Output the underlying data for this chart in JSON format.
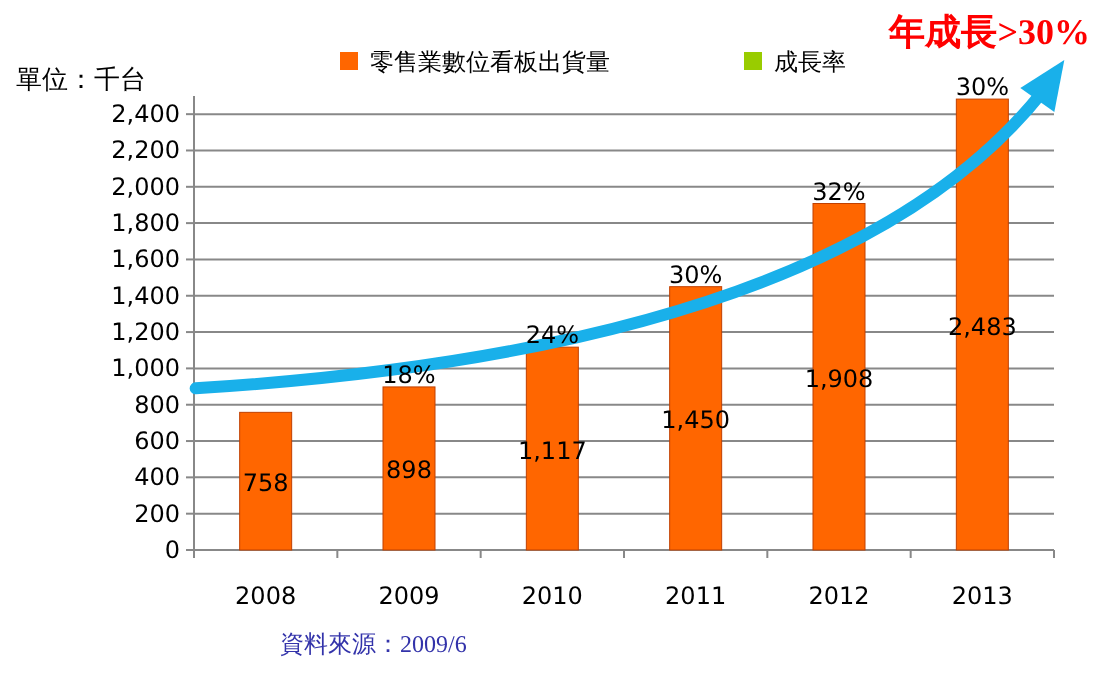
{
  "chart_data": {
    "type": "bar",
    "categories": [
      "2008",
      "2009",
      "2010",
      "2011",
      "2012",
      "2013"
    ],
    "series": [
      {
        "name": "零售業數位看板出貨量",
        "color": "#ff6600",
        "values": [
          758,
          898,
          1117,
          1450,
          1908,
          2483
        ],
        "value_labels": [
          "758",
          "898",
          "1,117",
          "1,450",
          "1,908",
          "2,483"
        ]
      },
      {
        "name": "成長率",
        "color": "#99cc00",
        "values": [
          null,
          null,
          null,
          null,
          null,
          null
        ]
      }
    ],
    "ylim": [
      0,
      2500
    ],
    "yticks": [
      0,
      200,
      400,
      600,
      800,
      {
        "value": 1000,
        "label": "1,000"
      },
      {
        "value": 1200,
        "label": "1,200"
      },
      {
        "value": 1400,
        "label": "1,400"
      },
      {
        "value": 1600,
        "label": "1,600"
      },
      {
        "value": 1800,
        "label": "1,800"
      },
      {
        "value": 2000,
        "label": "2,000"
      },
      {
        "value": 2200,
        "label": "2,200"
      },
      {
        "value": 2400,
        "label": "2,400"
      }
    ],
    "ylabel": "單位：千台",
    "grid": "y",
    "legend": "top",
    "annotations": [
      {
        "text": "18%",
        "x": "2009",
        "y": 898
      },
      {
        "text": "24%",
        "x": "2010",
        "y": 1117
      },
      {
        "text": "30%",
        "x": "2011",
        "y": 1450
      },
      {
        "text": "32%",
        "x": "2012",
        "y": 1908
      },
      {
        "text": "30%",
        "x": "2013",
        "y": 2483
      },
      "年成長>30%",
      "資料來源：2009/6"
    ]
  }
}
